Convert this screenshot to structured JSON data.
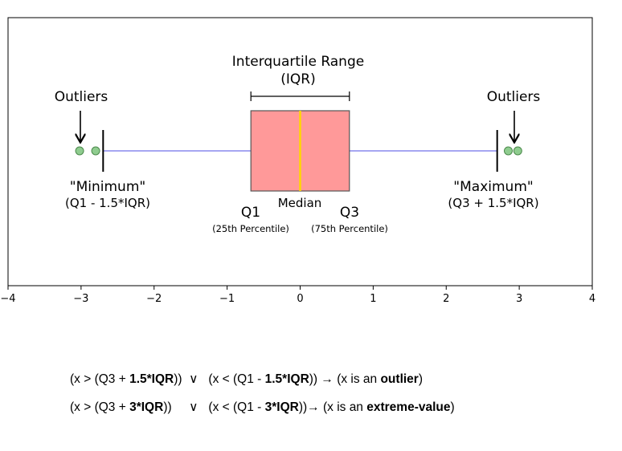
{
  "diagram": {
    "annotations": {
      "iqr_title_line1": "Interquartile Range",
      "iqr_title_line2": "(IQR)",
      "outliers_left": "Outliers",
      "outliers_right": "Outliers",
      "minimum_label": "\"Minimum\"",
      "minimum_formula": "(Q1 - 1.5*IQR)",
      "maximum_label": "\"Maximum\"",
      "maximum_formula": "(Q3 + 1.5*IQR)",
      "q1_label": "Q1",
      "q3_label": "Q3",
      "median_label": "Median",
      "q1_percentile": "(25th Percentile)",
      "q3_percentile": "(75th Percentile)"
    },
    "x_axis": {
      "range": [
        -4,
        4
      ],
      "ticks": [
        -4,
        -3,
        -2,
        -1,
        0,
        1,
        2,
        3,
        4
      ],
      "tick_labels": [
        "−4",
        "−3",
        "−2",
        "−1",
        "0",
        "1",
        "2",
        "3",
        "4"
      ]
    },
    "box": {
      "q1": -0.6745,
      "median": 0,
      "q3": 0.6745,
      "whisker_low": -2.698,
      "whisker_high": 2.698,
      "outliers": [
        -3.02,
        -2.8,
        2.85,
        2.98
      ]
    },
    "colors": {
      "box_fill": "#ff9999",
      "median_line": "#ffd700",
      "whisker_line": "#8888ee",
      "outlier_fill": "#8fcc8f"
    }
  },
  "formulas": {
    "line1": {
      "p1": "(x > (Q3 + ",
      "b1": "1.5*IQR",
      "p2": "))  ∨   (x < (Q1 - ",
      "b2": "1.5*IQR",
      "p3": ")) → (x is an ",
      "b3": "outlier",
      "p4": ")"
    },
    "line2": {
      "p1": "(x > (Q3 + ",
      "b1": "3*IQR",
      "p2": "))     ∨   (x < (Q1 - ",
      "b2": "3*IQR",
      "p3": "))→ (x is an ",
      "b3": "extreme-value",
      "p4": ")"
    }
  }
}
